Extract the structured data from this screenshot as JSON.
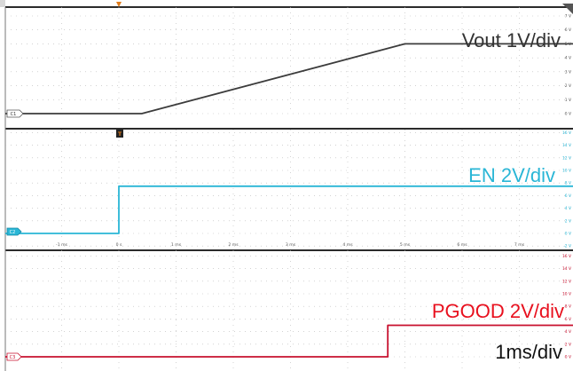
{
  "labels": {
    "vout": "Vout 1V/div",
    "en": "EN 2V/div",
    "pgood": "PGOOD 2V/div",
    "timebase": "1ms/div"
  },
  "markers": {
    "trigger": "T",
    "ch1": "C1",
    "ch2": "C2",
    "ch3": "C3"
  },
  "colors": {
    "vout": "#3c3c3c",
    "en": "#29b6d6",
    "pgood": "#c8102e",
    "grid": "#b8b8b8",
    "divider": "#2b2b2b",
    "trigger": "#e07b1a"
  },
  "chart_data": [
    {
      "type": "line",
      "xlim": [
        -2,
        8
      ],
      "ylim": [
        0,
        7
      ],
      "y_tick_labels": [
        "7 V",
        "6 V",
        "5 V",
        "4 V",
        "3 V",
        "2 V",
        "1 V",
        "0 V"
      ],
      "series": [
        {
          "name": "Vout 1V/div",
          "x": [
            -2,
            0.4,
            5,
            8
          ],
          "y": [
            0,
            0,
            5,
            5
          ]
        }
      ]
    },
    {
      "type": "line",
      "xlim": [
        -2,
        8
      ],
      "ylim": [
        -2,
        16
      ],
      "x_tick_labels": [
        "-1 ms",
        "0 s",
        "1 ms",
        "2 ms",
        "3 ms",
        "4 ms",
        "5 ms",
        "6 ms",
        "7 ms"
      ],
      "y_tick_labels": [
        "16 V",
        "14 V",
        "12 V",
        "10 V",
        "8 V",
        "6 V",
        "4 V",
        "2 V",
        "0 V",
        "-2 V"
      ],
      "series": [
        {
          "name": "EN 2V/div",
          "x": [
            -2,
            0,
            0,
            8
          ],
          "y": [
            0,
            0,
            7.5,
            7.5
          ]
        }
      ]
    },
    {
      "type": "line",
      "xlim": [
        -2,
        8
      ],
      "ylim": [
        -2,
        16
      ],
      "y_tick_labels": [
        "16 V",
        "14 V",
        "12 V",
        "10 V",
        "8 V",
        "6 V",
        "4 V",
        "2 V",
        "0 V"
      ],
      "series": [
        {
          "name": "PGOOD 2V/div",
          "x": [
            -2,
            4.7,
            4.7,
            8
          ],
          "y": [
            0,
            0,
            5,
            5
          ]
        }
      ]
    }
  ]
}
